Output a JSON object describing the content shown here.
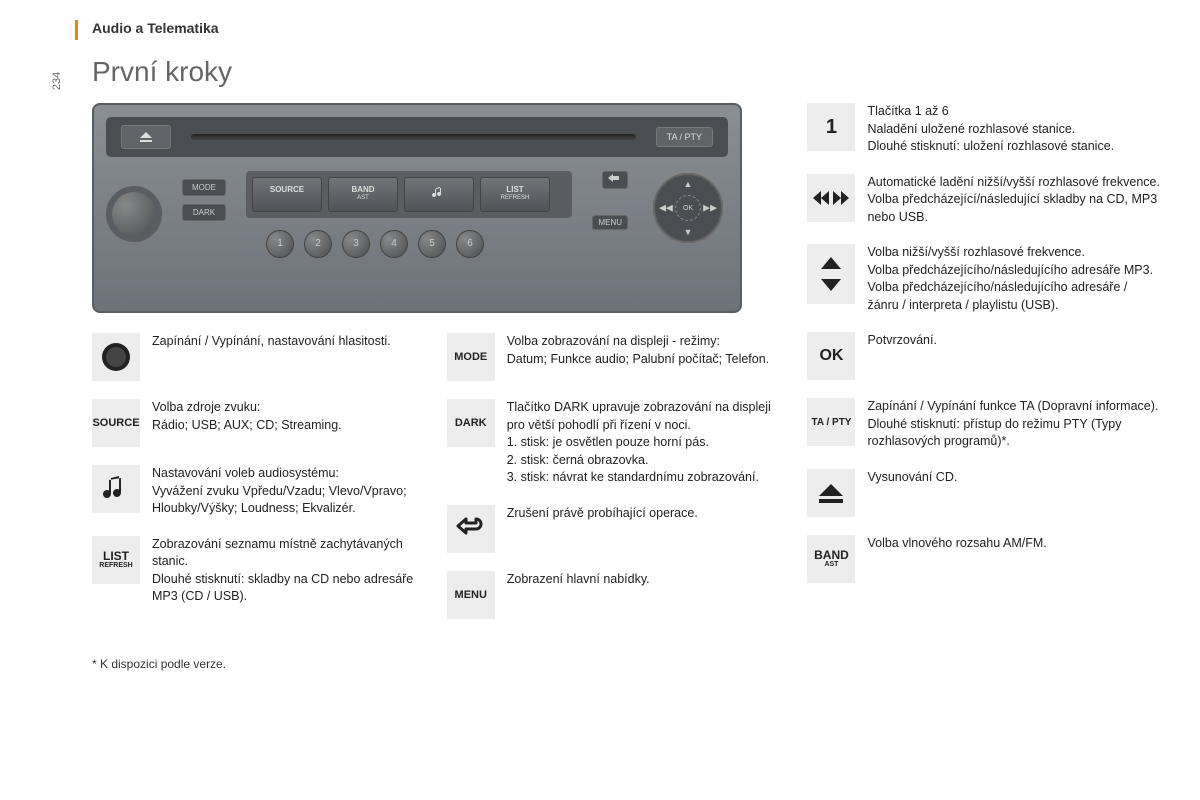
{
  "header": "Audio a Telematika",
  "page_number": "234",
  "title": "První kroky",
  "radio": {
    "ta_pty": "TA / PTY",
    "mode": "MODE",
    "dark": "DARK",
    "source": "SOURCE",
    "band": "BAND",
    "band_sub": "AST",
    "list": "LIST",
    "list_sub": "REFRESH",
    "menu": "MENU",
    "ok": "OK",
    "presets": [
      "1",
      "2",
      "3",
      "4",
      "5",
      "6"
    ]
  },
  "left_items": [
    {
      "icon": "knob",
      "text": "Zapínání / Vypínání, nastavování hlasitosti."
    },
    {
      "icon": "source",
      "label": "SOURCE",
      "text": "Volba zdroje zvuku:\nRádio; USB; AUX; CD; Streaming."
    },
    {
      "icon": "note",
      "text": "Nastavování voleb audiosystému:\nVyvážení zvuku Vpředu/Vzadu; Vlevo/Vpravo; Hloubky/Výšky; Loudness; Ekvalizér."
    },
    {
      "icon": "list",
      "label": "LIST",
      "sub": "REFRESH",
      "text": "Zobrazování seznamu místně zachytávaných stanic.\nDlouhé stisknutí: skladby na CD nebo adresáře MP3 (CD / USB)."
    }
  ],
  "mid_items": [
    {
      "icon": "mode",
      "label": "MODE",
      "text": "Volba zobrazování na displeji - režimy:\nDatum; Funkce audio; Palubní počítač; Telefon."
    },
    {
      "icon": "dark",
      "label": "DARK",
      "text": "Tlačítko DARK upravuje zobrazování na displeji pro větší pohodlí při řízení v noci.\n1. stisk: je osvětlen pouze horní pás.\n2. stisk: černá obrazovka.\n3. stisk: návrat ke standardnímu zobrazování."
    },
    {
      "icon": "back",
      "text": "Zrušení právě probíhající operace."
    },
    {
      "icon": "menu",
      "label": "MENU",
      "text": "Zobrazení hlavní nabídky."
    }
  ],
  "right_items": [
    {
      "icon": "one",
      "label": "1",
      "text": "Tlačítka 1 až 6\nNaladění uložené rozhlasové stanice.\nDlouhé stisknutí: uložení rozhlasové stanice."
    },
    {
      "icon": "seek",
      "text": "Automatické ladění nižší/vyšší rozhlasové frekvence.\nVolba předcházející/následující skladby na CD, MP3 nebo USB."
    },
    {
      "icon": "updown",
      "text": "Volba nižší/vyšší rozhlasové frekvence.\nVolba předcházejícího/následujícího adresáře MP3.\nVolba předcházejícího/následujícího adresáře / žánru / interpreta / playlistu (USB)."
    },
    {
      "icon": "ok",
      "label": "OK",
      "text": "Potvrzování."
    },
    {
      "icon": "tapty",
      "label": "TA / PTY",
      "text": "Zapínání / Vypínání funkce TA (Dopravní informace).\nDlouhé stisknutí: přístup do režimu PTY (Typy rozhlasových programů)*."
    },
    {
      "icon": "eject",
      "text": "Vysunování CD."
    },
    {
      "icon": "band",
      "label": "BAND",
      "sub": "AST",
      "text": "Volba vlnového rozsahu AM/FM."
    }
  ],
  "footnote": "* K dispozici podle verze."
}
